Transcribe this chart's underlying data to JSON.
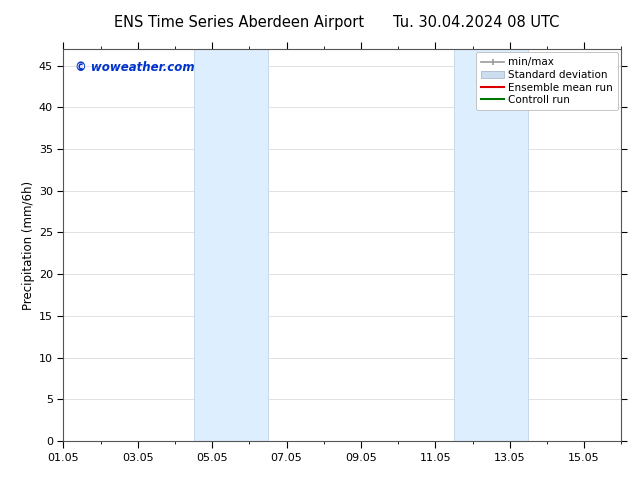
{
  "title_left": "ENS Time Series Aberdeen Airport",
  "title_right": "Tu. 30.04.2024 08 UTC",
  "ylabel": "Precipitation (mm/6h)",
  "ylim": [
    0,
    47
  ],
  "yticks": [
    0,
    5,
    10,
    15,
    20,
    25,
    30,
    35,
    40,
    45
  ],
  "xtick_labels": [
    "01.05",
    "03.05",
    "05.05",
    "07.05",
    "09.05",
    "11.05",
    "13.05",
    "15.05"
  ],
  "xtick_positions": [
    0,
    2,
    4,
    6,
    8,
    10,
    12,
    14
  ],
  "xlim": [
    0,
    15
  ],
  "shaded_bands": [
    {
      "x_start": 3.5,
      "x_end": 5.5,
      "color": "#ddeeff"
    },
    {
      "x_start": 10.5,
      "x_end": 12.5,
      "color": "#ddeeff"
    }
  ],
  "shaded_band_border_color": "#c0d4e8",
  "watermark_text": "© woweather.com",
  "watermark_color": "#0033cc",
  "legend_items": [
    {
      "label": "min/max",
      "color": "#999999"
    },
    {
      "label": "Standard deviation",
      "color": "#ccddf0"
    },
    {
      "label": "Ensemble mean run",
      "color": "#dd0000"
    },
    {
      "label": "Controll run",
      "color": "#007700"
    }
  ],
  "bg_color": "#ffffff",
  "grid_color": "#dddddd",
  "spine_color": "#555555",
  "title_fontsize": 10.5,
  "ylabel_fontsize": 8.5,
  "tick_fontsize": 8,
  "legend_fontsize": 7.5,
  "watermark_fontsize": 8.5
}
